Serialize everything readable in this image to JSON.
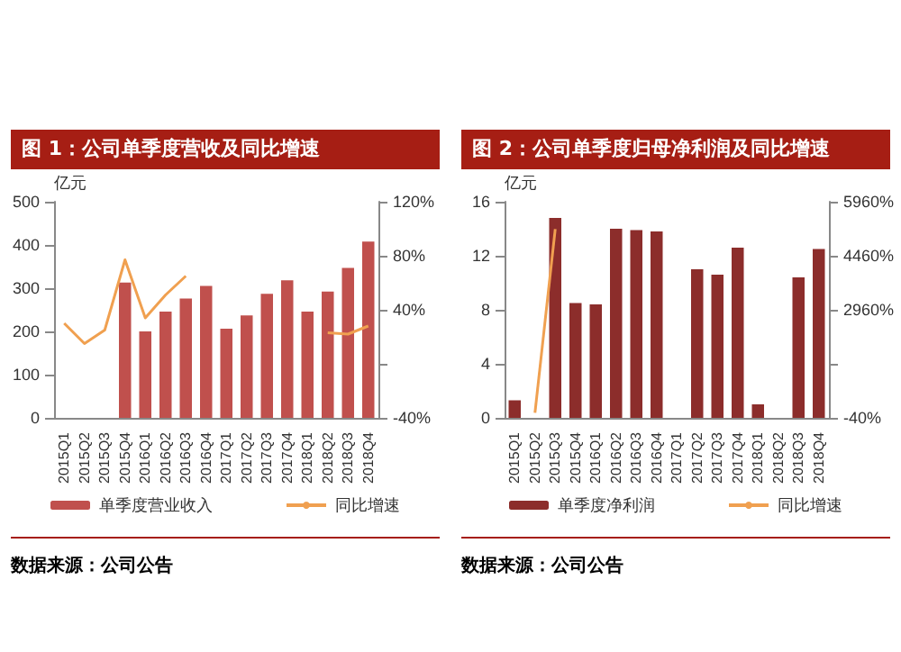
{
  "chart_data": [
    {
      "type": "bar",
      "title": "图 1：公司单季度营收及同比增速",
      "ylabel": "亿元",
      "categories": [
        "2015Q1",
        "2015Q2",
        "2015Q3",
        "2015Q4",
        "2016Q1",
        "2016Q2",
        "2016Q3",
        "2016Q4",
        "2017Q1",
        "2017Q2",
        "2017Q3",
        "2017Q4",
        "2018Q1",
        "2018Q2",
        "2018Q3",
        "2018Q4"
      ],
      "series": [
        {
          "name": "单季度营业收入",
          "color": "#c0504d",
          "values": [
            null,
            null,
            null,
            313,
            200,
            246,
            276,
            305,
            206,
            237,
            287,
            318,
            246,
            292,
            347,
            408
          ]
        },
        {
          "name": "同比增速",
          "type": "line",
          "axis": "y2",
          "color": "#f0a050",
          "values": [
            30,
            15,
            25,
            77,
            34,
            51,
            65,
            null,
            null,
            null,
            null,
            null,
            null,
            23,
            22,
            28
          ]
        }
      ],
      "ylim": [
        0,
        500
      ],
      "yticks": [
        0,
        100,
        200,
        300,
        400,
        500
      ],
      "y2lim": [
        -40,
        120
      ],
      "y2ticks": [
        {
          "value": -40,
          "label": "-40%"
        },
        {
          "value": 0,
          "label": null
        },
        {
          "value": 40,
          "label": "40%"
        },
        {
          "value": 80,
          "label": "80%"
        },
        {
          "value": 120,
          "label": "120%"
        }
      ],
      "grid": false,
      "legend": "bottom",
      "marker": "none",
      "annotations": [
        "数据来源：公司公告"
      ]
    },
    {
      "type": "bar",
      "title": "图 2：公司单季度归母净利润及同比增速",
      "ylabel": "亿元",
      "categories": [
        "2015Q1",
        "2015Q2",
        "2015Q3",
        "2015Q4",
        "2016Q1",
        "2016Q2",
        "2016Q3",
        "2016Q4",
        "2017Q1",
        "2017Q2",
        "2017Q3",
        "2017Q4",
        "2018Q1",
        "2018Q2",
        "2018Q3",
        "2018Q4"
      ],
      "series": [
        {
          "name": "单季度净利润",
          "color": "#8c2d2b",
          "values": [
            1.3,
            null,
            14.8,
            8.5,
            8.4,
            14.0,
            13.9,
            13.8,
            null,
            11.0,
            10.6,
            12.6,
            1.0,
            null,
            10.4,
            12.5
          ]
        },
        {
          "name": "同比增速",
          "type": "line",
          "axis": "y2",
          "color": "#f0a050",
          "values": [
            null,
            100,
            5200,
            null,
            null,
            null,
            null,
            null,
            null,
            null,
            null,
            null,
            null,
            null,
            null,
            null
          ]
        }
      ],
      "ylim": [
        0,
        16
      ],
      "yticks": [
        0,
        4,
        8,
        12,
        16
      ],
      "y2lim": [
        -40,
        5960
      ],
      "y2ticks": [
        {
          "value": -40,
          "label": "-40%"
        },
        {
          "value": 1460,
          "label": null
        },
        {
          "value": 2960,
          "label": "2960%"
        },
        {
          "value": 4460,
          "label": "4460%"
        },
        {
          "value": 5960,
          "label": "5960%"
        }
      ],
      "grid": false,
      "legend": "bottom",
      "marker": "none",
      "annotations": [
        "数据来源：公司公告"
      ]
    }
  ]
}
